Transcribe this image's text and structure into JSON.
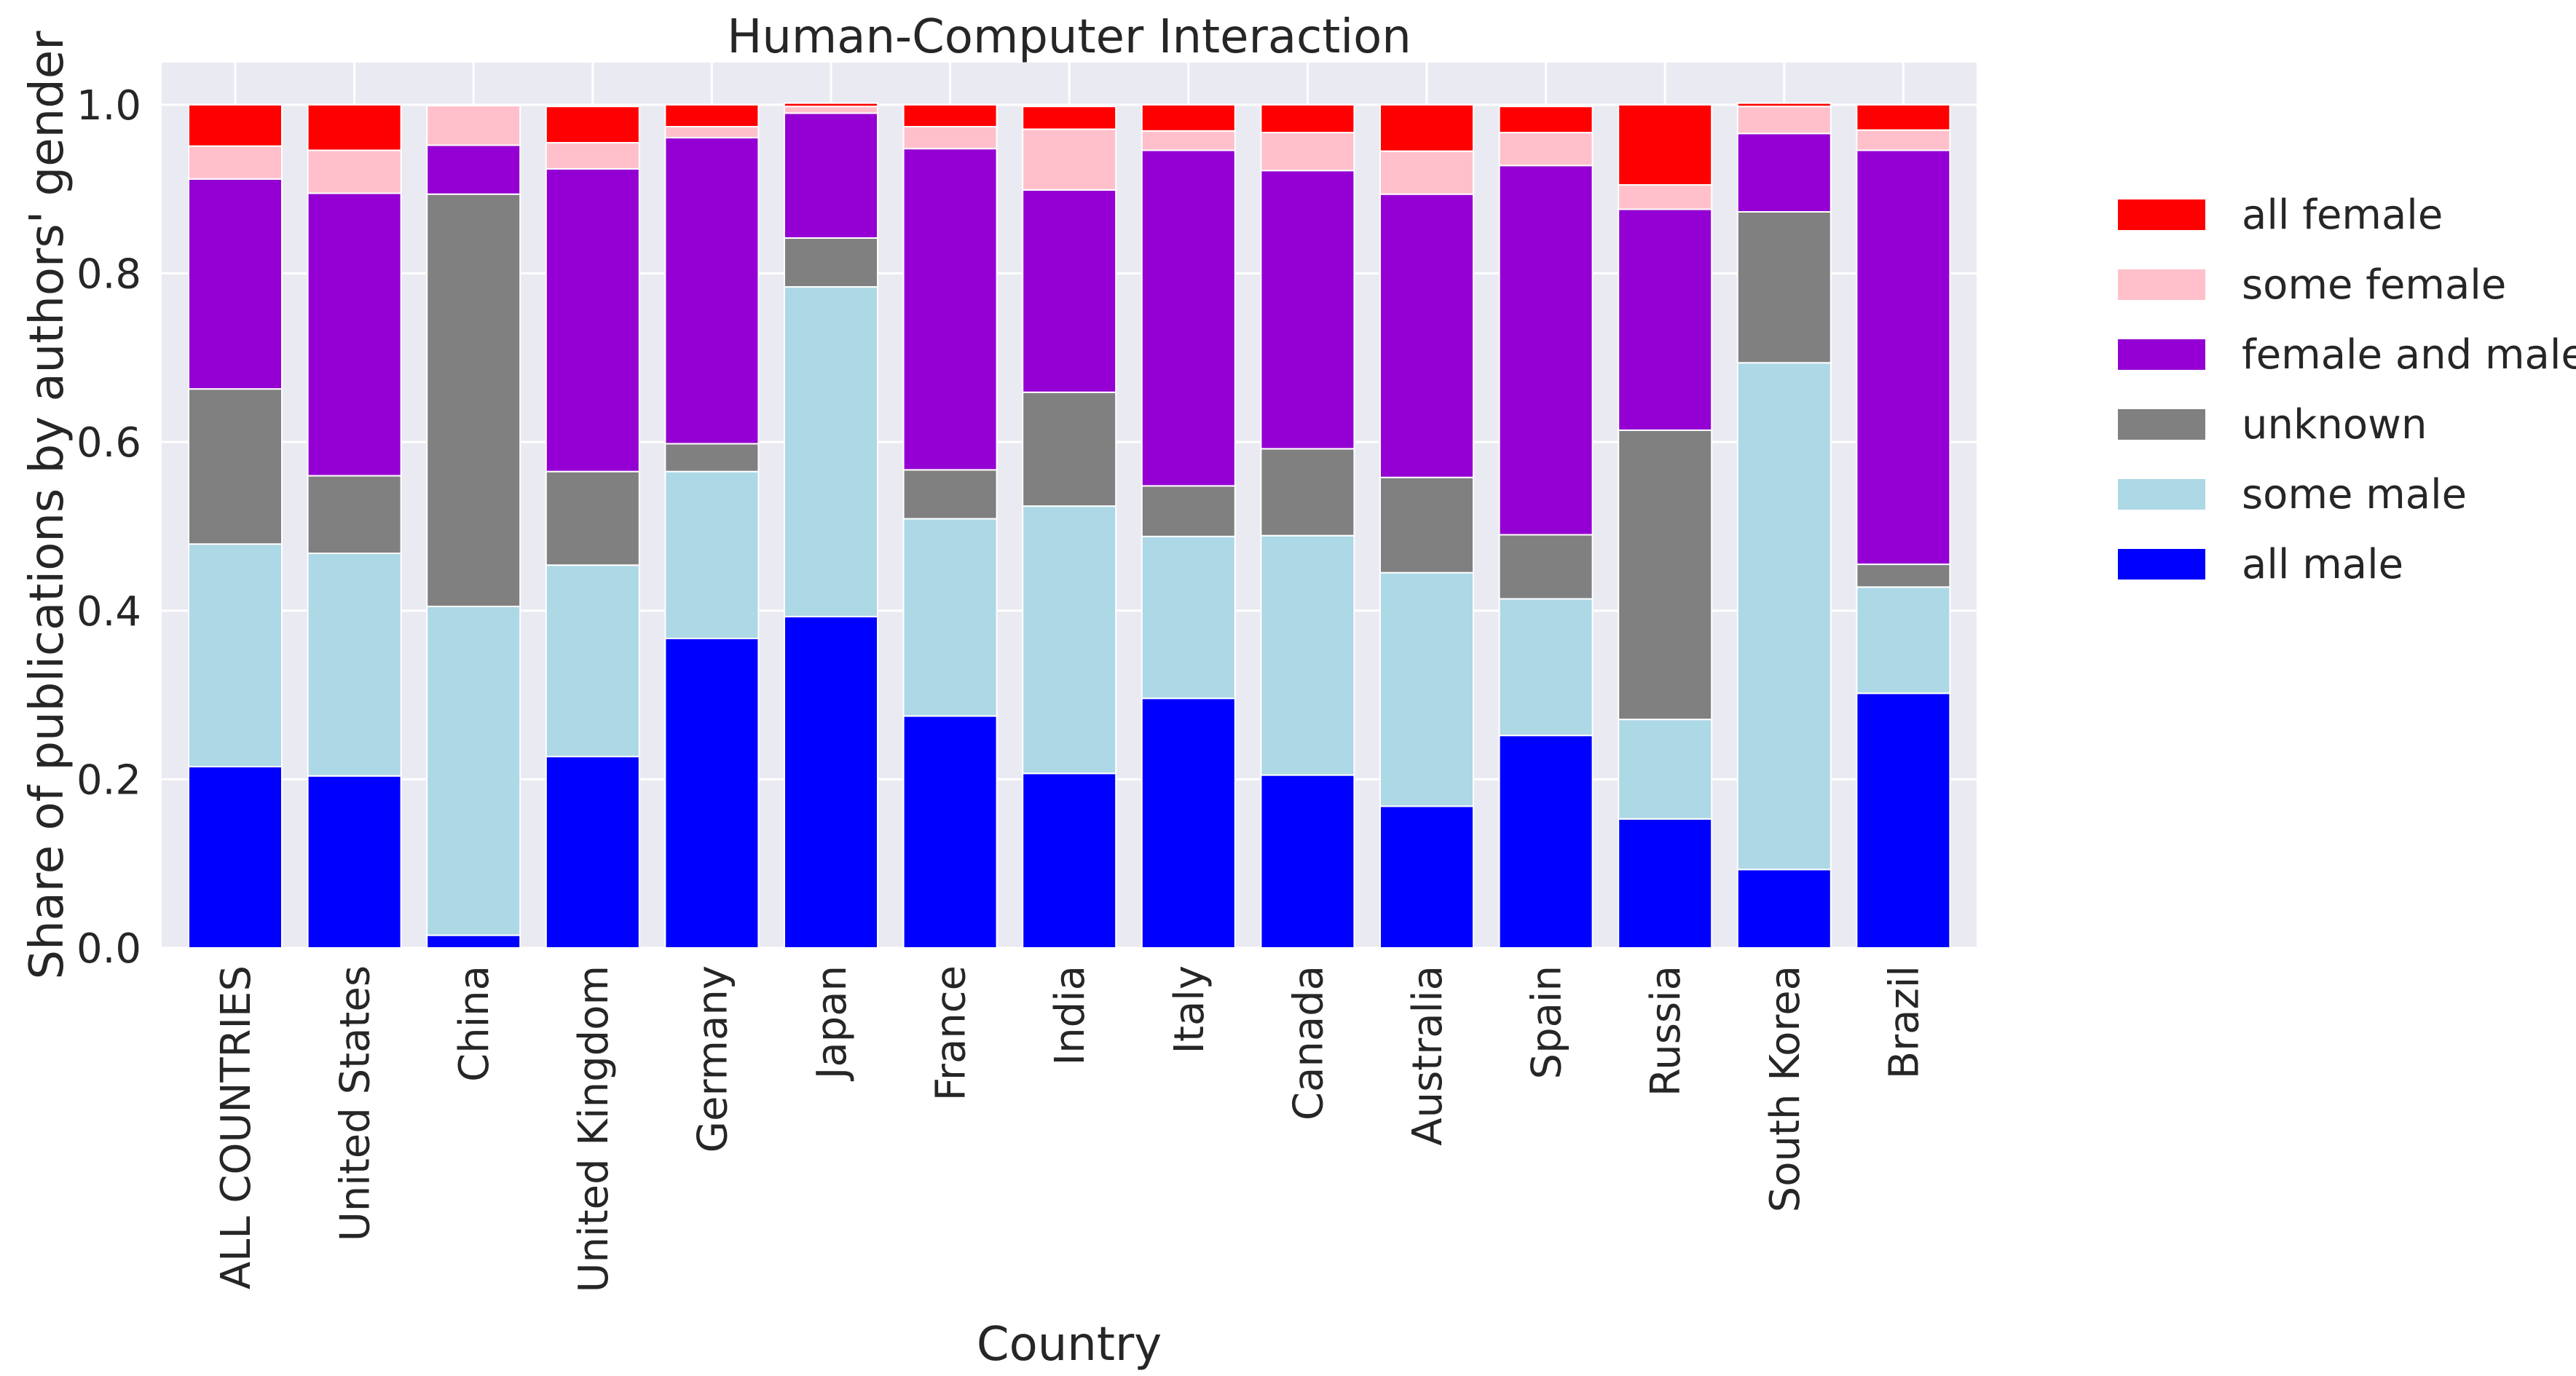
{
  "chart_data": {
    "type": "bar",
    "stacked": true,
    "title": "Human-Computer Interaction",
    "xlabel": "Country",
    "ylabel": "Share of publications by authors' gender",
    "ylim": [
      0,
      1.05
    ],
    "yticks": [
      "0.0",
      "0.2",
      "0.4",
      "0.6",
      "0.8",
      "1.0"
    ],
    "categories": [
      "ALL COUNTRIES",
      "United States",
      "China",
      "United Kingdom",
      "Germany",
      "Japan",
      "France",
      "India",
      "Italy",
      "Canada",
      "Australia",
      "Spain",
      "Russia",
      "South Korea",
      "Brazil"
    ],
    "series": [
      {
        "name": "all male",
        "color": "#0000ff",
        "values": [
          0.215,
          0.204,
          0.015,
          0.227,
          0.367,
          0.393,
          0.275,
          0.207,
          0.296,
          0.205,
          0.168,
          0.252,
          0.153,
          0.093,
          0.302
        ]
      },
      {
        "name": "some male",
        "color": "#add8e6",
        "values": [
          0.264,
          0.264,
          0.39,
          0.227,
          0.198,
          0.391,
          0.234,
          0.317,
          0.192,
          0.284,
          0.277,
          0.162,
          0.118,
          0.601,
          0.126
        ]
      },
      {
        "name": "unknown",
        "color": "#808080",
        "values": [
          0.184,
          0.092,
          0.489,
          0.111,
          0.033,
          0.058,
          0.058,
          0.135,
          0.06,
          0.103,
          0.113,
          0.076,
          0.343,
          0.179,
          0.027
        ]
      },
      {
        "name": "female and male",
        "color": "#9400d3",
        "values": [
          0.249,
          0.335,
          0.058,
          0.359,
          0.363,
          0.148,
          0.381,
          0.24,
          0.398,
          0.33,
          0.336,
          0.438,
          0.262,
          0.093,
          0.491
        ]
      },
      {
        "name": "some female",
        "color": "#ffc0cb",
        "values": [
          0.039,
          0.051,
          0.047,
          0.031,
          0.013,
          0.008,
          0.026,
          0.072,
          0.023,
          0.045,
          0.051,
          0.039,
          0.029,
          0.032,
          0.024
        ]
      },
      {
        "name": "all female",
        "color": "#ff0000",
        "values": [
          0.049,
          0.054,
          0.001,
          0.043,
          0.026,
          0.004,
          0.026,
          0.027,
          0.031,
          0.033,
          0.055,
          0.031,
          0.095,
          0.004,
          0.03
        ]
      }
    ],
    "legend": {
      "placement": "right-outside",
      "order": [
        "all female",
        "some female",
        "female and male",
        "unknown",
        "some male",
        "all male"
      ]
    },
    "grid": true,
    "plot_background": "#eaeaf2"
  }
}
